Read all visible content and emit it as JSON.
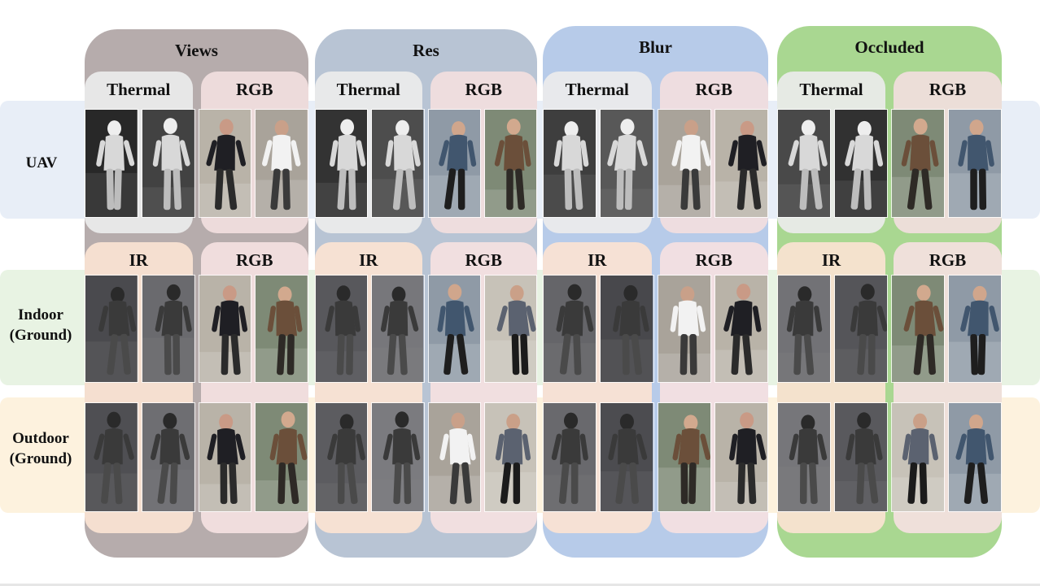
{
  "columns": [
    {
      "title": "Views",
      "color": "#b6acac",
      "aerial_pill_labels": [
        "Thermal",
        "RGB"
      ],
      "ground_pill_labels": [
        "IR",
        "RGB"
      ]
    },
    {
      "title": "Res",
      "color": "#b8c4d4",
      "aerial_pill_labels": [
        "Thermal",
        "RGB"
      ],
      "ground_pill_labels": [
        "IR",
        "RGB"
      ]
    },
    {
      "title": "Blur",
      "color": "#b7cbe9",
      "aerial_pill_labels": [
        "Thermal",
        "RGB"
      ],
      "ground_pill_labels": [
        "IR",
        "RGB"
      ]
    },
    {
      "title": "Occluded",
      "color": "#a9d791",
      "aerial_pill_labels": [
        "Thermal",
        "RGB"
      ],
      "ground_pill_labels": [
        "IR",
        "RGB"
      ]
    }
  ],
  "rows": [
    {
      "label_line1": "UAV",
      "label_line2": "",
      "color": "#e8eef7"
    },
    {
      "label_line1": "Indoor",
      "label_line2": "(Ground)",
      "color": "#e8f3e3"
    },
    {
      "label_line1": "Outdoor",
      "label_line2": "(Ground)",
      "color": "#fdf2de"
    }
  ],
  "pill_colors": {
    "thermal": "#ececec",
    "rgb_aerial": "#f2dede",
    "ir": "#fbe3d3",
    "rgb_ground": "#f5e1e1"
  },
  "image_tones": {
    "thermal": "thermal",
    "ir": "infrared",
    "rgb": "color"
  }
}
